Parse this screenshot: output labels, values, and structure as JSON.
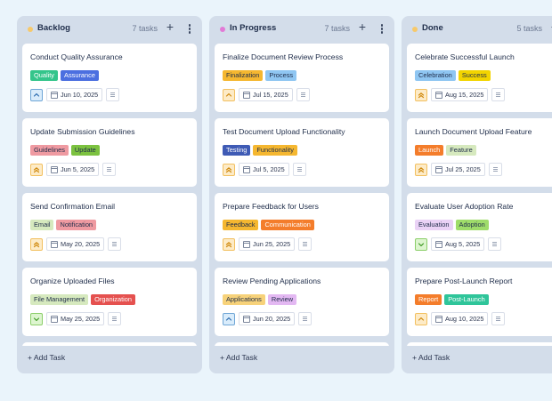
{
  "columns": [
    {
      "title": "Backlog",
      "count": "7 tasks",
      "dot_color": "#f7c96a",
      "add_label": "+ Add Task",
      "cards": [
        {
          "title": "Conduct Quality Assurance",
          "tags": [
            {
              "label": "Quality",
              "bg": "#34c58b",
              "fg": "#ffffff"
            },
            {
              "label": "Assurance",
              "bg": "#4b6fe0",
              "fg": "#ffffff"
            }
          ],
          "priority": "high",
          "date": "Jun 10, 2025"
        },
        {
          "title": "Update Submission Guidelines",
          "tags": [
            {
              "label": "Guidelines",
              "bg": "#ef9aa1",
              "fg": "#1f2d4a"
            },
            {
              "label": "Update",
              "bg": "#7cc240",
              "fg": "#1f2d4a"
            }
          ],
          "priority": "highest",
          "date": "Jun 5, 2025"
        },
        {
          "title": "Send Confirmation Email",
          "tags": [
            {
              "label": "Email",
              "bg": "#d6e9be",
              "fg": "#1f2d4a"
            },
            {
              "label": "Notification",
              "bg": "#ef9aa1",
              "fg": "#1f2d4a"
            }
          ],
          "priority": "highest",
          "date": "May 20, 2025"
        },
        {
          "title": "Organize Uploaded Files",
          "tags": [
            {
              "label": "File Management",
              "bg": "#d6e9be",
              "fg": "#1f2d4a"
            },
            {
              "label": "Organization",
              "bg": "#e5514f",
              "fg": "#ffffff"
            }
          ],
          "priority": "low",
          "date": "May 25, 2025"
        }
      ]
    },
    {
      "title": "In Progress",
      "count": "7 tasks",
      "dot_color": "#e27ad6",
      "add_label": "+ Add Task",
      "cards": [
        {
          "title": "Finalize Document Review Process",
          "tags": [
            {
              "label": "Finalization",
              "bg": "#f5b730",
              "fg": "#1f2d4a"
            },
            {
              "label": "Process",
              "bg": "#8fc6f2",
              "fg": "#1f2d4a"
            }
          ],
          "priority": "medium",
          "date": "Jul 15, 2025"
        },
        {
          "title": "Test Document Upload Functionality",
          "tags": [
            {
              "label": "Testing",
              "bg": "#3f5bb5",
              "fg": "#ffffff"
            },
            {
              "label": "Functionality",
              "bg": "#f5b730",
              "fg": "#1f2d4a"
            }
          ],
          "priority": "highest",
          "date": "Jul 5, 2025"
        },
        {
          "title": "Prepare Feedback for Users",
          "tags": [
            {
              "label": "Feedback",
              "bg": "#f5b730",
              "fg": "#1f2d4a"
            },
            {
              "label": "Communication",
              "bg": "#f47d2b",
              "fg": "#ffffff"
            }
          ],
          "priority": "highest",
          "date": "Jun 25, 2025"
        },
        {
          "title": "Review Pending Applications",
          "tags": [
            {
              "label": "Applications",
              "bg": "#f7d27a",
              "fg": "#1f2d4a"
            },
            {
              "label": "Review",
              "bg": "#e3b8f2",
              "fg": "#1f2d4a"
            }
          ],
          "priority": "high",
          "date": "Jun 20, 2025"
        }
      ]
    },
    {
      "title": "Done",
      "count": "5 tasks",
      "dot_color": "#f7c96a",
      "add_label": "+ Add Task",
      "cards": [
        {
          "title": "Celebrate Successful Launch",
          "tags": [
            {
              "label": "Celebration",
              "bg": "#8fc6f2",
              "fg": "#1f2d4a"
            },
            {
              "label": "Success",
              "bg": "#f2d400",
              "fg": "#1f2d4a"
            }
          ],
          "priority": "highest",
          "date": "Aug 15, 2025"
        },
        {
          "title": "Launch Document Upload Feature",
          "tags": [
            {
              "label": "Launch",
              "bg": "#f47d2b",
              "fg": "#ffffff"
            },
            {
              "label": "Feature",
              "bg": "#d6e9be",
              "fg": "#1f2d4a"
            }
          ],
          "priority": "highest",
          "date": "Jul 25, 2025"
        },
        {
          "title": "Evaluate User Adoption Rate",
          "tags": [
            {
              "label": "Evaluation",
              "bg": "#ead2f6",
              "fg": "#1f2d4a"
            },
            {
              "label": "Adoption",
              "bg": "#9fdc6a",
              "fg": "#1f2d4a"
            }
          ],
          "priority": "low",
          "date": "Aug 5, 2025"
        },
        {
          "title": "Prepare Post-Launch Report",
          "tags": [
            {
              "label": "Report",
              "bg": "#f47d2b",
              "fg": "#ffffff"
            },
            {
              "label": "Post-Launch",
              "bg": "#2fc59a",
              "fg": "#ffffff"
            }
          ],
          "priority": "medium",
          "date": "Aug 10, 2025"
        }
      ]
    }
  ],
  "priority_styles": {
    "high": {
      "bg": "#d9ecfb",
      "border": "#6fa6d6",
      "color": "#2d6db0",
      "icon": "chevron-up-icon"
    },
    "highest": {
      "bg": "#fdebc7",
      "border": "#f2c060",
      "color": "#d08a10",
      "icon": "double-chevron-up-icon"
    },
    "medium": {
      "bg": "#fdebc7",
      "border": "#f2c060",
      "color": "#d08a10",
      "icon": "chevron-up-icon"
    },
    "low": {
      "bg": "#ddf5cf",
      "border": "#8ccf6a",
      "color": "#3f9a25",
      "icon": "chevron-down-icon"
    }
  }
}
